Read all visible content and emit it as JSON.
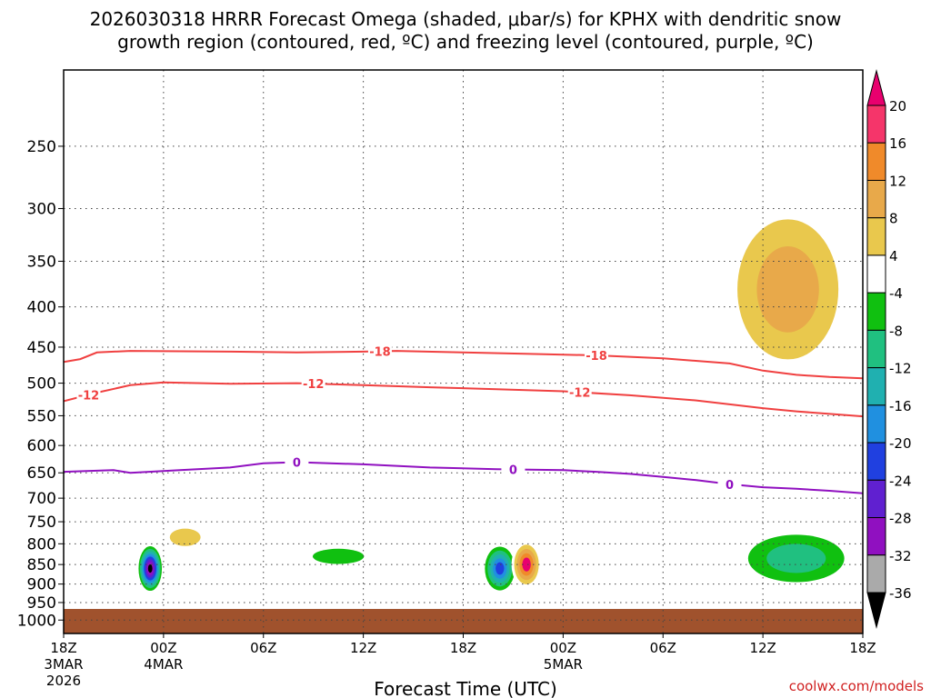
{
  "chart_data": {
    "type": "heatmap",
    "title_line1": "2026030318 HRRR Forecast Omega (shaded, μbar/s) for KPHX with dendritic snow",
    "title_line2": "growth region (contoured, red, ºC) and freezing level (contoured, purple, ºC)",
    "xlabel": "Forecast Time (UTC)",
    "ylabel": "",
    "credit": "coolwx.com/models",
    "x_range_hours": [
      0,
      48
    ],
    "pressure_range_hPa": [
      200,
      1040
    ],
    "x_ticks": [
      {
        "hour": 0,
        "label": "18Z",
        "sub1": "3MAR",
        "sub2": "2026"
      },
      {
        "hour": 6,
        "label": "00Z",
        "sub1": "4MAR",
        "sub2": ""
      },
      {
        "hour": 12,
        "label": "06Z",
        "sub1": "",
        "sub2": ""
      },
      {
        "hour": 18,
        "label": "12Z",
        "sub1": "",
        "sub2": ""
      },
      {
        "hour": 24,
        "label": "18Z",
        "sub1": "",
        "sub2": ""
      },
      {
        "hour": 30,
        "label": "00Z",
        "sub1": "5MAR",
        "sub2": ""
      },
      {
        "hour": 36,
        "label": "06Z",
        "sub1": "",
        "sub2": ""
      },
      {
        "hour": 42,
        "label": "12Z",
        "sub1": "",
        "sub2": ""
      },
      {
        "hour": 48,
        "label": "18Z",
        "sub1": "",
        "sub2": ""
      }
    ],
    "y_ticks": [
      {
        "p": 250,
        "label": "250"
      },
      {
        "p": 300,
        "label": "300"
      },
      {
        "p": 350,
        "label": "350"
      },
      {
        "p": 400,
        "label": "400"
      },
      {
        "p": 450,
        "label": "450"
      },
      {
        "p": 500,
        "label": "500"
      },
      {
        "p": 550,
        "label": "550"
      },
      {
        "p": 600,
        "label": "600"
      },
      {
        "p": 650,
        "label": "650"
      },
      {
        "p": 700,
        "label": "700"
      },
      {
        "p": 750,
        "label": "750"
      },
      {
        "p": 800,
        "label": "800"
      },
      {
        "p": 850,
        "label": "850"
      },
      {
        "p": 900,
        "label": "900"
      },
      {
        "p": 950,
        "label": "950"
      },
      {
        "p": 1000,
        "label": "1000"
      }
    ],
    "surface_pressure_hPa": 968,
    "surface_color": "#a0522d",
    "colorbar": {
      "labels": [
        "20",
        "16",
        "12",
        "8",
        "4",
        "-4",
        "-8",
        "-12",
        "-16",
        "-20",
        "-24",
        "-28",
        "-32",
        "-36"
      ],
      "colors": [
        "#f5356a",
        "#f08a2a",
        "#e8a94a",
        "#e9c84d",
        "#ffffff",
        "#10c010",
        "#20c080",
        "#20b0b0",
        "#2090e0",
        "#2040e0",
        "#6020d0",
        "#9010c0",
        "#aaaaaa"
      ],
      "top_color": "#e8006e",
      "bottom_color": "#000000"
    },
    "contours": [
      {
        "name": "dgz-minus18",
        "level_label": "-18",
        "color": "#f04040",
        "points": [
          [
            0,
            470
          ],
          [
            1,
            466
          ],
          [
            2,
            457
          ],
          [
            4,
            455
          ],
          [
            10,
            456
          ],
          [
            14,
            457
          ],
          [
            18,
            456
          ],
          [
            20,
            455
          ],
          [
            24,
            457
          ],
          [
            28,
            459
          ],
          [
            32,
            461
          ],
          [
            36,
            465
          ],
          [
            40,
            472
          ],
          [
            42,
            482
          ],
          [
            44,
            488
          ],
          [
            46,
            491
          ],
          [
            48,
            493
          ]
        ],
        "label_hours": [
          19,
          32
        ]
      },
      {
        "name": "dgz-minus12",
        "level_label": "-12",
        "color": "#f04040",
        "points": [
          [
            0,
            527
          ],
          [
            2,
            514
          ],
          [
            4,
            503
          ],
          [
            6,
            499
          ],
          [
            10,
            501
          ],
          [
            14,
            500
          ],
          [
            18,
            503
          ],
          [
            22,
            506
          ],
          [
            26,
            509
          ],
          [
            30,
            512
          ],
          [
            34,
            518
          ],
          [
            38,
            526
          ],
          [
            40,
            532
          ],
          [
            42,
            538
          ],
          [
            44,
            543
          ],
          [
            46,
            547
          ],
          [
            48,
            551
          ]
        ],
        "label_hours": [
          1.5,
          15,
          31
        ]
      },
      {
        "name": "freezing-level-0",
        "level_label": "0",
        "color": "#9010c0",
        "points": [
          [
            0,
            648
          ],
          [
            3,
            645
          ],
          [
            4,
            650
          ],
          [
            7,
            645
          ],
          [
            10,
            640
          ],
          [
            12,
            632
          ],
          [
            14,
            630
          ],
          [
            16,
            632
          ],
          [
            18,
            634
          ],
          [
            22,
            640
          ],
          [
            26,
            643
          ],
          [
            30,
            645
          ],
          [
            32,
            648
          ],
          [
            34,
            652
          ],
          [
            36,
            658
          ],
          [
            38,
            664
          ],
          [
            40,
            672
          ],
          [
            42,
            678
          ],
          [
            44,
            681
          ],
          [
            46,
            685
          ],
          [
            48,
            690
          ]
        ],
        "label_hours": [
          14,
          27,
          40
        ]
      }
    ],
    "omega_features": [
      {
        "name": "neg-core-a",
        "center": [
          5.2,
          860
        ],
        "rx": 0.7,
        "ry": 112,
        "levels": [
          -8,
          -12,
          -16,
          -20,
          -24,
          -28,
          -32,
          -36
        ]
      },
      {
        "name": "pos-a",
        "center": [
          7.3,
          785
        ],
        "rx": 1.5,
        "ry": 65,
        "levels": [
          4,
          8
        ]
      },
      {
        "name": "pos-lowleft",
        "center": [
          2.3,
          760
        ],
        "rx": 2.1,
        "ry": 170,
        "levels": [
          4
        ]
      },
      {
        "name": "pos-tall",
        "center": [
          9.7,
          440
        ],
        "rx": 1.6,
        "ry": 230,
        "levels": [
          4
        ]
      },
      {
        "name": "pos-top-left",
        "center": [
          4.3,
          305
        ],
        "rx": 0.9,
        "ry": 70,
        "levels": [
          4
        ]
      },
      {
        "name": "neg-mid-left",
        "center": [
          16.5,
          830
        ],
        "rx": 2.5,
        "ry": 60,
        "levels": [
          -4,
          -8
        ]
      },
      {
        "name": "neg-mid-2",
        "center": [
          21.3,
          815
        ],
        "rx": 1.5,
        "ry": 45,
        "levels": [
          -4
        ]
      },
      {
        "name": "neg-core-b",
        "center": [
          26.2,
          860
        ],
        "rx": 0.9,
        "ry": 110,
        "levels": [
          -8,
          -12,
          -16,
          -20,
          -24
        ]
      },
      {
        "name": "pos-core-b",
        "center": [
          27.8,
          850
        ],
        "rx": 0.9,
        "ry": 120,
        "levels": [
          4,
          8,
          12,
          16,
          20
        ]
      },
      {
        "name": "neg-upper-b",
        "center": [
          28.8,
          380
        ],
        "rx": 1.1,
        "ry": 190,
        "levels": [
          -4
        ]
      },
      {
        "name": "pos-right-upper",
        "center": [
          43.5,
          380
        ],
        "rx": 4.2,
        "ry": 210,
        "levels": [
          4,
          8,
          12
        ]
      },
      {
        "name": "neg-right-low",
        "center": [
          44.0,
          835
        ],
        "rx": 4.0,
        "ry": 160,
        "levels": [
          -4,
          -8,
          -12
        ]
      }
    ]
  }
}
